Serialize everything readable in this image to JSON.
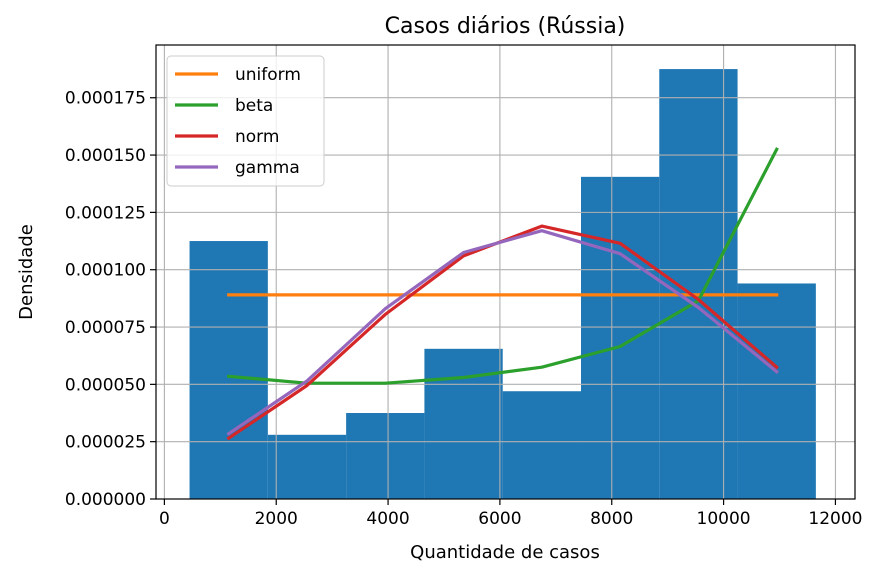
{
  "chart_data": {
    "type": "bar",
    "title": "Casos diários (Rússia)",
    "xlabel": "Quantidade de casos",
    "ylabel": "Densidade",
    "xlim": [
      -150,
      12350
    ],
    "ylim": [
      0,
      0.000198
    ],
    "x_ticks": [
      0,
      2000,
      4000,
      6000,
      8000,
      10000,
      12000
    ],
    "x_tick_labels": [
      "0",
      "2000",
      "4000",
      "6000",
      "8000",
      "10000",
      "12000"
    ],
    "y_ticks": [
      0,
      2.5e-05,
      5e-05,
      7.5e-05,
      0.0001,
      0.000125,
      0.00015,
      0.000175
    ],
    "y_tick_labels": [
      "0.000000",
      "0.000025",
      "0.000050",
      "0.000075",
      "0.000100",
      "0.000125",
      "0.000150",
      "0.000175"
    ],
    "grid": true,
    "legend_position": "top-left",
    "histogram": {
      "color": "#1f77b4",
      "bin_edges": [
        450,
        1850,
        3250,
        4650,
        6050,
        7450,
        8850,
        10250,
        11650
      ],
      "values": [
        0.0001125,
        2.8e-05,
        3.75e-05,
        6.55e-05,
        4.7e-05,
        0.0001405,
        0.0001875,
        9.4e-05
      ]
    },
    "series": [
      {
        "name": "uniform",
        "color": "#ff7f0e",
        "x": [
          1150,
          10950
        ],
        "y": [
          8.9e-05,
          8.9e-05
        ]
      },
      {
        "name": "beta",
        "color": "#2ca02c",
        "x": [
          1150,
          2550,
          3950,
          5350,
          6750,
          8150,
          9550,
          10950
        ],
        "y": [
          5.35e-05,
          5.05e-05,
          5.05e-05,
          5.3e-05,
          5.75e-05,
          6.65e-05,
          8.65e-05,
          0.0001525
        ]
      },
      {
        "name": "norm",
        "color": "#d62728",
        "x": [
          1150,
          2550,
          3950,
          5350,
          6750,
          8150,
          9550,
          10950
        ],
        "y": [
          2.65e-05,
          4.95e-05,
          8.05e-05,
          0.000106,
          0.000119,
          0.0001115,
          8.7e-05,
          5.75e-05
        ]
      },
      {
        "name": "gamma",
        "color": "#9467bd",
        "x": [
          1150,
          2550,
          3950,
          5350,
          6750,
          8150,
          9550,
          10950
        ],
        "y": [
          2.85e-05,
          5.15e-05,
          8.3e-05,
          0.0001075,
          0.000117,
          0.000107,
          8.35e-05,
          5.55e-05
        ]
      }
    ]
  }
}
